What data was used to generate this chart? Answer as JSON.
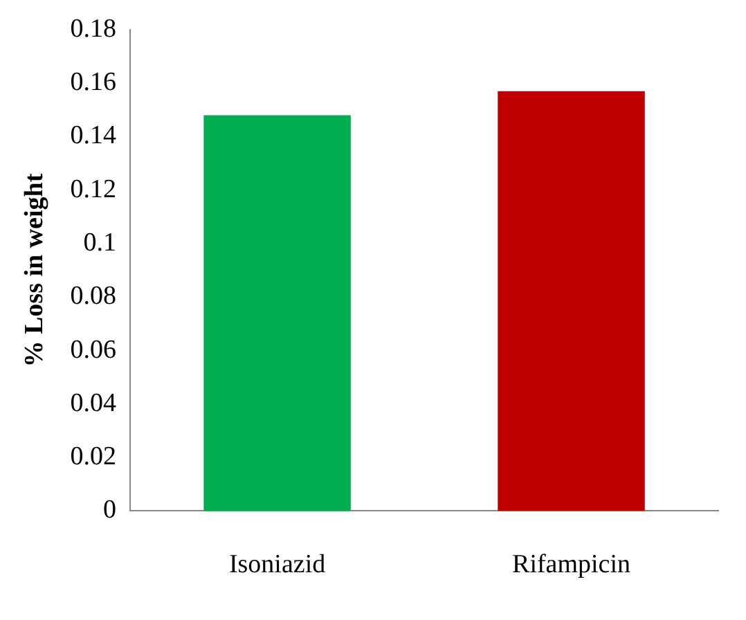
{
  "chart_data": {
    "type": "bar",
    "ylabel": "% Loss in weight",
    "categories": [
      "Isoniazid",
      "Rifampicin"
    ],
    "values": [
      0.148,
      0.157
    ],
    "colors": [
      "#00b050",
      "#c00000"
    ],
    "ylim": [
      0,
      0.18
    ],
    "yticks": [
      0,
      0.02,
      0.04,
      0.06,
      0.08,
      0.1,
      0.12,
      0.14,
      0.16,
      0.18
    ],
    "grid": false,
    "legend": false
  }
}
